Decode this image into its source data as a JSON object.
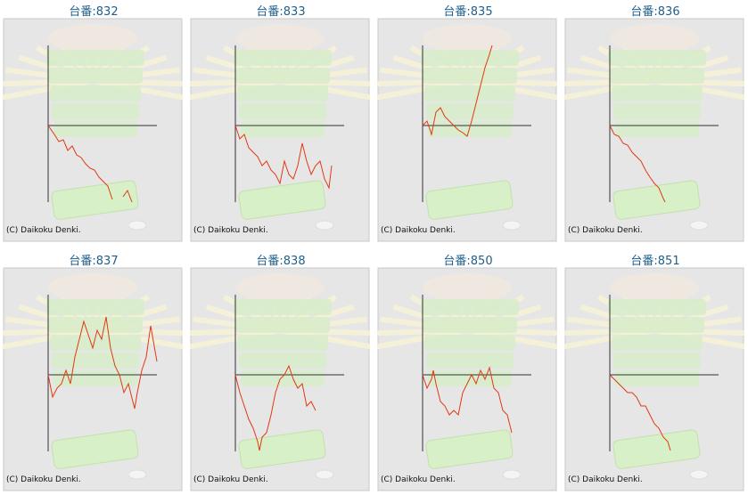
{
  "chart_data": [
    {
      "type": "line",
      "title": "台番:832",
      "copyright": "(C) Daikoku Denki.",
      "color": "#e03a10",
      "xlim": [
        0,
        150
      ],
      "ylim": [
        -90,
        90
      ],
      "x": [
        0,
        7,
        12,
        17,
        22,
        27,
        32,
        37,
        42,
        47,
        52,
        57,
        62,
        67,
        72,
        78,
        84,
        89,
        94
      ],
      "values": [
        0,
        -10,
        -18,
        -16,
        -28,
        -23,
        -33,
        -36,
        -43,
        -48,
        -50,
        -58,
        -63,
        -68,
        -83,
        null,
        -80,
        -73,
        -86
      ]
    },
    {
      "type": "line",
      "title": "台番:833",
      "copyright": "(C) Daikoku Denki.",
      "color": "#e03a10",
      "xlim": [
        0,
        150
      ],
      "ylim": [
        -90,
        90
      ],
      "x": [
        0,
        5,
        10,
        15,
        20,
        25,
        30,
        35,
        40,
        45,
        50,
        55,
        60,
        65,
        70,
        75,
        80,
        85,
        90,
        95,
        100,
        105,
        108
      ],
      "values": [
        0,
        -15,
        -10,
        -25,
        -30,
        -35,
        -45,
        -40,
        -50,
        -55,
        -65,
        -40,
        -55,
        -60,
        -45,
        -20,
        -40,
        -55,
        -45,
        -40,
        -60,
        -70,
        -45
      ]
    },
    {
      "type": "line",
      "title": "台番:835",
      "copyright": "(C) Daikoku Denki.",
      "color": "#e03a10",
      "xlim": [
        0,
        150
      ],
      "ylim": [
        -90,
        90
      ],
      "x": [
        0,
        5,
        10,
        15,
        20,
        25,
        30,
        35,
        40,
        45,
        50,
        55,
        60,
        65,
        70,
        75,
        78
      ],
      "values": [
        0,
        5,
        -10,
        15,
        20,
        10,
        5,
        0,
        -5,
        -8,
        -12,
        5,
        25,
        45,
        65,
        80,
        90
      ]
    },
    {
      "type": "line",
      "title": "台番:836",
      "copyright": "(C) Daikoku Denki.",
      "color": "#e03a10",
      "xlim": [
        0,
        150
      ],
      "ylim": [
        -90,
        90
      ],
      "x": [
        0,
        5,
        10,
        15,
        20,
        25,
        30,
        35,
        40,
        45,
        50,
        55,
        60,
        62
      ],
      "values": [
        0,
        -10,
        -12,
        -20,
        -22,
        -30,
        -35,
        -40,
        -50,
        -58,
        -65,
        -70,
        -82,
        -86
      ]
    },
    {
      "type": "line",
      "title": "台番:837",
      "copyright": "(C) Daikoku Denki.",
      "color": "#e03a10",
      "xlim": [
        0,
        150
      ],
      "ylim": [
        -90,
        90
      ],
      "x": [
        0,
        5,
        10,
        15,
        20,
        25,
        30,
        35,
        40,
        45,
        50,
        55,
        60,
        65,
        70,
        75,
        80,
        85,
        90,
        95,
        97,
        100,
        105,
        110,
        115,
        122
      ],
      "values": [
        0,
        -25,
        -15,
        -10,
        5,
        -10,
        20,
        40,
        60,
        45,
        30,
        50,
        40,
        65,
        30,
        10,
        0,
        -20,
        -10,
        -30,
        -38,
        -20,
        5,
        20,
        55,
        15
      ]
    },
    {
      "type": "line",
      "title": "台番:838",
      "copyright": "(C) Daikoku Denki.",
      "color": "#e03a10",
      "xlim": [
        0,
        150
      ],
      "ylim": [
        -90,
        90
      ],
      "x": [
        0,
        5,
        10,
        15,
        20,
        25,
        27,
        30,
        35,
        40,
        45,
        50,
        55,
        60,
        65,
        70,
        75,
        80,
        85,
        90
      ],
      "values": [
        0,
        -20,
        -35,
        -50,
        -60,
        -75,
        -85,
        -70,
        -65,
        -45,
        -20,
        -5,
        0,
        10,
        -5,
        -15,
        -10,
        -35,
        -30,
        -40
      ]
    },
    {
      "type": "line",
      "title": "台番:850",
      "copyright": "(C) Daikoku Denki.",
      "color": "#e03a10",
      "xlim": [
        0,
        150
      ],
      "ylim": [
        -90,
        90
      ],
      "x": [
        0,
        5,
        10,
        12,
        15,
        20,
        25,
        30,
        35,
        40,
        45,
        50,
        55,
        60,
        65,
        70,
        75,
        80,
        85,
        90,
        95,
        100
      ],
      "values": [
        0,
        -15,
        -5,
        5,
        -10,
        -30,
        -35,
        -45,
        -40,
        -45,
        -20,
        -10,
        0,
        -10,
        5,
        -5,
        8,
        -15,
        -20,
        -40,
        -45,
        -65
      ]
    },
    {
      "type": "line",
      "title": "台番:851",
      "copyright": "(C) Daikoku Denki.",
      "color": "#e03a10",
      "xlim": [
        0,
        150
      ],
      "ylim": [
        -90,
        90
      ],
      "x": [
        0,
        5,
        10,
        15,
        20,
        25,
        30,
        35,
        40,
        45,
        50,
        55,
        60,
        65,
        68
      ],
      "values": [
        0,
        -5,
        -10,
        -15,
        -20,
        -20,
        -25,
        -35,
        -35,
        -45,
        -55,
        -60,
        -70,
        -75,
        -85
      ]
    }
  ]
}
